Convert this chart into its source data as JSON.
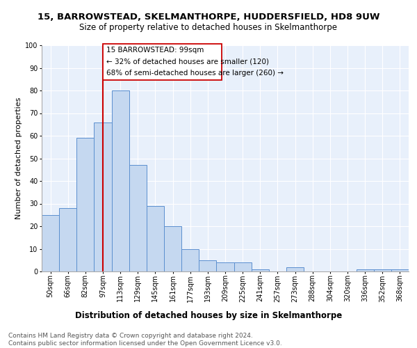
{
  "title": "15, BARROWSTEAD, SKELMANTHORPE, HUDDERSFIELD, HD8 9UW",
  "subtitle": "Size of property relative to detached houses in Skelmanthorpe",
  "xlabel": "Distribution of detached houses by size in Skelmanthorpe",
  "ylabel": "Number of detached properties",
  "categories": [
    "50sqm",
    "66sqm",
    "82sqm",
    "97sqm",
    "113sqm",
    "129sqm",
    "145sqm",
    "161sqm",
    "177sqm",
    "193sqm",
    "209sqm",
    "225sqm",
    "241sqm",
    "257sqm",
    "273sqm",
    "288sqm",
    "304sqm",
    "320sqm",
    "336sqm",
    "352sqm",
    "368sqm"
  ],
  "values": [
    25,
    28,
    59,
    66,
    80,
    47,
    29,
    20,
    10,
    5,
    4,
    4,
    1,
    0,
    2,
    0,
    0,
    0,
    1,
    1,
    1
  ],
  "bar_color": "#c5d8f0",
  "bar_edge_color": "#5b8fcf",
  "background_color": "#e8f0fb",
  "vline_color": "#cc0000",
  "vline_x_idx": 3,
  "annotation_line1": "15 BARROWSTEAD: 99sqm",
  "annotation_line2": "← 32% of detached houses are smaller (120)",
  "annotation_line3": "68% of semi-detached houses are larger (260) →",
  "ylim": [
    0,
    100
  ],
  "footer": "Contains HM Land Registry data © Crown copyright and database right 2024.\nContains public sector information licensed under the Open Government Licence v3.0.",
  "title_fontsize": 9.5,
  "subtitle_fontsize": 8.5,
  "xlabel_fontsize": 8.5,
  "ylabel_fontsize": 8,
  "tick_fontsize": 7,
  "annot_fontsize": 7.5,
  "footer_fontsize": 6.5
}
